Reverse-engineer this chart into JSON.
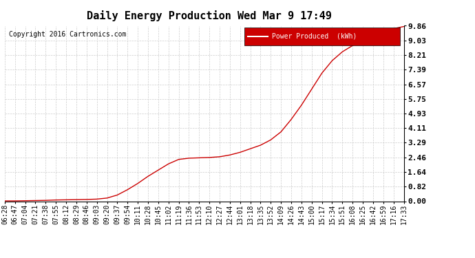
{
  "title": "Daily Energy Production Wed Mar 9 17:49",
  "copyright": "Copyright 2016 Cartronics.com",
  "legend_label": "Power Produced  (kWh)",
  "line_color": "#cc0000",
  "legend_bg": "#cc0000",
  "legend_text_color": "#ffffff",
  "bg_color": "#ffffff",
  "plot_bg_color": "#ffffff",
  "grid_color": "#cccccc",
  "yticks": [
    0.0,
    0.82,
    1.64,
    2.46,
    3.29,
    4.11,
    4.93,
    5.75,
    6.57,
    7.39,
    8.21,
    9.03,
    9.86
  ],
  "ylim": [
    0.0,
    9.86
  ],
  "xtick_labels": [
    "06:28",
    "06:47",
    "07:04",
    "07:21",
    "07:38",
    "07:55",
    "08:12",
    "08:29",
    "08:46",
    "09:03",
    "09:20",
    "09:37",
    "09:54",
    "10:11",
    "10:28",
    "10:45",
    "11:02",
    "11:19",
    "11:36",
    "11:53",
    "12:10",
    "12:27",
    "12:44",
    "13:01",
    "13:18",
    "13:35",
    "13:52",
    "14:09",
    "14:26",
    "14:43",
    "15:00",
    "15:17",
    "15:34",
    "15:51",
    "16:08",
    "16:25",
    "16:42",
    "16:59",
    "17:16",
    "17:33"
  ],
  "y_values": [
    0.02,
    0.02,
    0.03,
    0.04,
    0.05,
    0.07,
    0.08,
    0.09,
    0.1,
    0.12,
    0.18,
    0.35,
    0.65,
    1.0,
    1.4,
    1.75,
    2.1,
    2.35,
    2.42,
    2.44,
    2.46,
    2.5,
    2.6,
    2.75,
    2.95,
    3.15,
    3.45,
    3.9,
    4.6,
    5.4,
    6.3,
    7.2,
    7.9,
    8.4,
    8.75,
    9.05,
    9.3,
    9.55,
    9.7,
    9.82
  ],
  "title_fontsize": 11,
  "copyright_fontsize": 7,
  "legend_fontsize": 7,
  "tick_fontsize": 7,
  "ytick_fontsize": 8
}
